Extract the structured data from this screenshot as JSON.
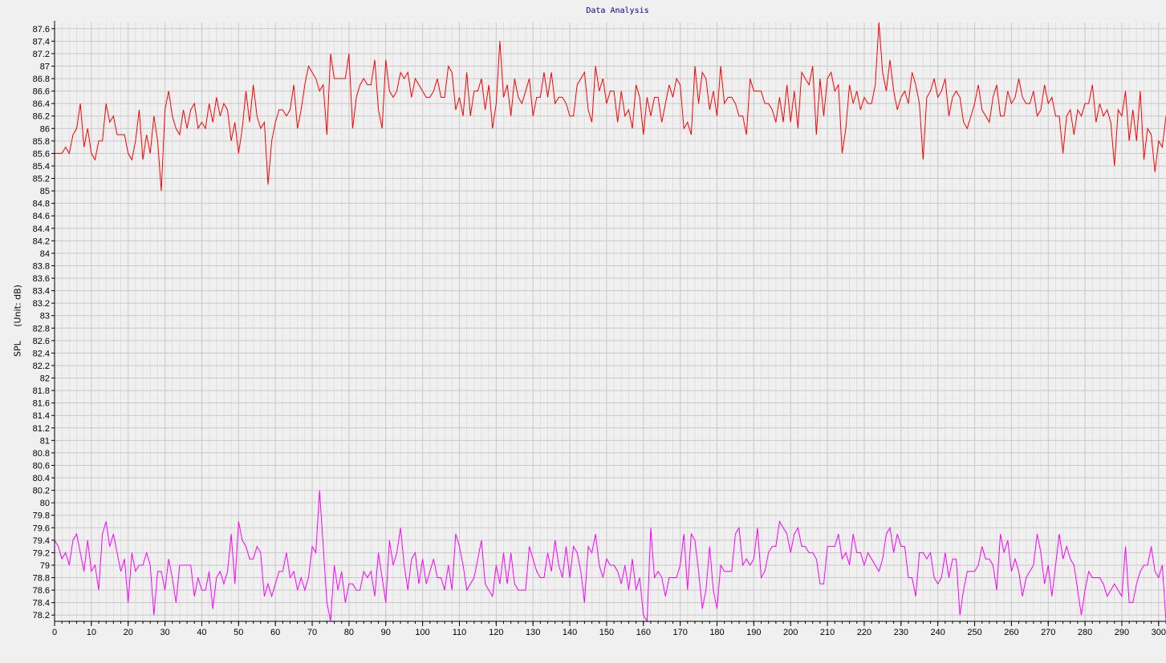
{
  "chart_data": {
    "type": "line",
    "title": "Data Analysis",
    "ylabel": "SPL     (Unit: dB)",
    "xlabel": "",
    "xlim": [
      0,
      302
    ],
    "ylim": [
      78.1,
      87.7
    ],
    "x_ticks": [
      0,
      10,
      20,
      30,
      40,
      50,
      60,
      70,
      80,
      90,
      100,
      110,
      120,
      130,
      140,
      150,
      160,
      170,
      180,
      190,
      200,
      210,
      220,
      230,
      240,
      250,
      260,
      270,
      280,
      290,
      300
    ],
    "y_ticks": [
      78.2,
      78.4,
      78.6,
      78.8,
      79,
      79.2,
      79.4,
      79.6,
      79.8,
      80,
      80.2,
      80.4,
      80.6,
      80.8,
      81,
      81.2,
      81.4,
      81.6,
      81.8,
      82,
      82.2,
      82.4,
      82.6,
      82.8,
      83,
      83.2,
      83.4,
      83.6,
      83.8,
      84,
      84.2,
      84.4,
      84.6,
      84.8,
      85,
      85.2,
      85.4,
      85.6,
      85.8,
      86,
      86.2,
      86.4,
      86.6,
      86.8,
      87,
      87.2,
      87.4,
      87.6
    ],
    "grid": true,
    "series": [
      {
        "color": "#ff0000",
        "values": [
          85.6,
          85.6,
          85.6,
          85.7,
          85.6,
          85.9,
          86.0,
          86.4,
          85.7,
          86.0,
          85.6,
          85.5,
          85.8,
          85.8,
          86.4,
          86.1,
          86.2,
          85.9,
          85.9,
          85.9,
          85.6,
          85.5,
          85.8,
          86.3,
          85.5,
          85.9,
          85.6,
          86.2,
          85.8,
          85.0,
          86.3,
          86.6,
          86.2,
          86.0,
          85.9,
          86.3,
          86.0,
          86.3,
          86.4,
          86.0,
          86.1,
          86.0,
          86.4,
          86.1,
          86.5,
          86.2,
          86.4,
          86.3,
          85.8,
          86.1,
          85.6,
          86.0,
          86.6,
          86.1,
          86.7,
          86.2,
          86.0,
          86.1,
          85.1,
          85.8,
          86.1,
          86.3,
          86.3,
          86.2,
          86.3,
          86.7,
          86.0,
          86.3,
          86.7,
          87.0,
          86.9,
          86.8,
          86.6,
          86.7,
          85.9,
          87.2,
          86.8,
          86.8,
          86.8,
          86.8,
          87.2,
          86.0,
          86.5,
          86.7,
          86.8,
          86.7,
          86.7,
          87.1,
          86.3,
          86.0,
          87.1,
          86.6,
          86.5,
          86.6,
          86.9,
          86.8,
          86.9,
          86.5,
          86.8,
          86.7,
          86.6,
          86.5,
          86.5,
          86.6,
          86.8,
          86.5,
          86.5,
          87.0,
          86.9,
          86.3,
          86.5,
          86.2,
          86.9,
          86.2,
          86.6,
          86.6,
          86.8,
          86.3,
          86.7,
          86.0,
          86.4,
          87.4,
          86.5,
          86.7,
          86.2,
          86.8,
          86.5,
          86.4,
          86.6,
          86.8,
          86.2,
          86.5,
          86.5,
          86.9,
          86.5,
          86.9,
          86.4,
          86.5,
          86.5,
          86.4,
          86.2,
          86.2,
          86.7,
          86.8,
          86.9,
          86.3,
          86.1,
          87.0,
          86.6,
          86.8,
          86.4,
          86.6,
          86.6,
          86.1,
          86.6,
          86.2,
          86.3,
          86.0,
          86.7,
          86.5,
          85.9,
          86.5,
          86.2,
          86.5,
          86.5,
          86.1,
          86.4,
          86.7,
          86.5,
          86.8,
          86.7,
          86.0,
          86.1,
          85.9,
          87.0,
          86.4,
          86.9,
          86.8,
          86.3,
          86.6,
          86.2,
          87.0,
          86.4,
          86.5,
          86.5,
          86.4,
          86.2,
          86.2,
          85.9,
          86.8,
          86.6,
          86.6,
          86.6,
          86.4,
          86.4,
          86.3,
          86.1,
          86.5,
          86.1,
          86.7,
          86.1,
          86.6,
          86.0,
          86.9,
          86.8,
          86.7,
          87.0,
          85.9,
          86.8,
          86.2,
          86.8,
          86.9,
          86.6,
          86.7,
          85.6,
          86.0,
          86.7,
          86.4,
          86.6,
          86.3,
          86.5,
          86.4,
          86.4,
          86.7,
          87.7,
          86.9,
          86.6,
          87.1,
          86.6,
          86.3,
          86.5,
          86.6,
          86.4,
          86.9,
          86.7,
          86.4,
          85.5,
          86.5,
          86.6,
          86.8,
          86.5,
          86.6,
          86.8,
          86.2,
          86.5,
          86.6,
          86.5,
          86.1,
          86.0,
          86.2,
          86.4,
          86.7,
          86.3,
          86.2,
          86.1,
          86.5,
          86.7,
          86.2,
          86.2,
          86.6,
          86.4,
          86.5,
          86.8,
          86.5,
          86.4,
          86.4,
          86.6,
          86.2,
          86.3,
          86.7,
          86.4,
          86.5,
          86.2,
          86.2,
          85.6,
          86.2,
          86.3,
          85.9,
          86.3,
          86.2,
          86.4,
          86.4,
          86.7,
          86.1,
          86.4,
          86.2,
          86.3,
          86.1,
          85.4,
          86.3,
          86.2,
          86.6,
          85.8,
          86.3,
          85.8,
          86.6,
          85.5,
          86.0,
          85.9,
          85.3,
          85.8,
          85.7,
          86.2,
          85.8
        ]
      },
      {
        "color": "#ff00ff",
        "values": [
          79.4,
          79.3,
          79.1,
          79.2,
          79.0,
          79.4,
          79.5,
          79.2,
          78.9,
          79.4,
          78.9,
          79.0,
          78.6,
          79.5,
          79.7,
          79.3,
          79.5,
          79.2,
          78.9,
          79.1,
          78.4,
          79.2,
          78.9,
          79.0,
          79.0,
          79.2,
          79.0,
          78.2,
          78.9,
          78.9,
          78.6,
          79.1,
          78.8,
          78.4,
          79.0,
          79.0,
          79.0,
          79.0,
          78.5,
          78.8,
          78.6,
          78.6,
          78.9,
          78.3,
          78.8,
          78.9,
          78.7,
          78.9,
          79.5,
          78.7,
          79.7,
          79.4,
          79.3,
          79.1,
          79.1,
          79.3,
          79.2,
          78.5,
          78.7,
          78.5,
          78.7,
          78.9,
          78.9,
          79.2,
          78.8,
          78.9,
          78.6,
          78.8,
          78.6,
          78.8,
          79.3,
          79.2,
          80.2,
          79.3,
          78.4,
          78.1,
          79.0,
          78.6,
          78.9,
          78.4,
          78.7,
          78.7,
          78.6,
          78.6,
          78.9,
          78.8,
          78.9,
          78.5,
          79.2,
          78.8,
          78.4,
          79.4,
          79.0,
          79.2,
          79.6,
          79.0,
          78.6,
          79.1,
          79.2,
          78.7,
          79.1,
          78.7,
          78.9,
          79.1,
          78.8,
          78.8,
          78.6,
          79.0,
          78.6,
          79.5,
          79.3,
          79.0,
          78.6,
          78.7,
          78.8,
          79.1,
          79.4,
          78.7,
          78.6,
          78.5,
          79.0,
          78.7,
          79.2,
          78.7,
          79.2,
          78.7,
          78.6,
          78.6,
          78.6,
          79.3,
          79.1,
          78.9,
          78.8,
          78.8,
          79.2,
          78.9,
          79.4,
          79.0,
          78.8,
          79.3,
          78.8,
          79.3,
          79.2,
          78.9,
          78.4,
          79.3,
          79.2,
          79.5,
          79.0,
          78.8,
          79.1,
          79.0,
          79.0,
          78.9,
          78.7,
          79.0,
          78.6,
          79.1,
          78.6,
          78.8,
          78.2,
          78.1,
          79.6,
          78.8,
          78.9,
          78.8,
          78.5,
          78.8,
          78.8,
          78.8,
          79.0,
          79.5,
          78.6,
          79.5,
          79.4,
          78.9,
          78.3,
          78.6,
          79.3,
          78.6,
          78.3,
          79.0,
          78.9,
          78.9,
          78.9,
          79.5,
          79.6,
          79.0,
          79.1,
          79.0,
          79.1,
          79.6,
          78.8,
          78.9,
          79.2,
          79.3,
          79.3,
          79.7,
          79.6,
          79.5,
          79.2,
          79.5,
          79.6,
          79.3,
          79.3,
          79.2,
          79.2,
          79.1,
          78.7,
          78.7,
          79.3,
          79.3,
          79.3,
          79.5,
          79.1,
          79.2,
          79.0,
          79.5,
          79.2,
          79.2,
          79.0,
          79.2,
          79.1,
          79.0,
          78.9,
          79.1,
          79.5,
          79.6,
          79.2,
          79.5,
          79.3,
          79.3,
          78.8,
          78.8,
          78.5,
          79.2,
          79.2,
          79.1,
          79.2,
          78.8,
          78.7,
          78.8,
          79.2,
          78.8,
          79.1,
          79.1,
          78.2,
          78.6,
          78.9,
          78.9,
          78.9,
          79.0,
          79.3,
          79.1,
          79.1,
          79.0,
          78.6,
          79.5,
          79.2,
          79.4,
          78.9,
          79.1,
          78.9,
          78.5,
          78.8,
          78.9,
          79.0,
          79.5,
          79.2,
          78.7,
          79.0,
          78.5,
          79.0,
          79.5,
          79.1,
          79.3,
          79.1,
          79.0,
          78.6,
          78.2,
          78.6,
          78.9,
          78.8,
          78.8,
          78.8,
          78.7,
          78.5,
          78.6,
          78.7,
          78.6,
          78.5,
          79.3,
          78.4,
          78.4,
          78.7,
          78.9,
          79.0,
          79.0,
          79.3,
          78.9,
          78.8,
          79.0,
          78.1
        ]
      }
    ]
  }
}
